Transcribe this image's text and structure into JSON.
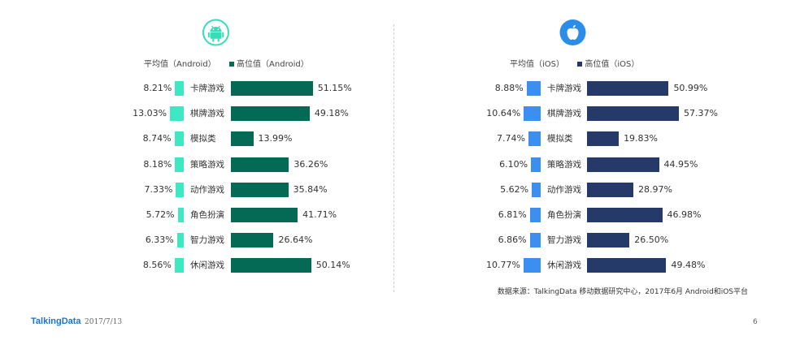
{
  "chart_data": [
    {
      "type": "bar",
      "platform_icon": "android-icon",
      "categories": [
        "卡牌游戏",
        "棋牌游戏",
        "模拟类",
        "策略游戏",
        "动作游戏",
        "角色扮演",
        "智力游戏",
        "休闲游戏"
      ],
      "series": [
        {
          "name": "平均值（Android）",
          "values": [
            8.21,
            13.03,
            8.74,
            8.18,
            7.33,
            5.72,
            6.33,
            8.56
          ],
          "labels": [
            "8.21%",
            "13.03%",
            "8.74%",
            "8.18%",
            "7.33%",
            "5.72%",
            "6.33%",
            "8.56%"
          ],
          "color": "#3de8c3"
        },
        {
          "name": "高位值（Android）",
          "values": [
            51.15,
            49.18,
            13.99,
            36.26,
            35.84,
            41.71,
            26.64,
            50.14
          ],
          "labels": [
            "51.15%",
            "49.18%",
            "13.99%",
            "36.26%",
            "35.84%",
            "41.71%",
            "26.64%",
            "50.14%"
          ],
          "color": "#046a56"
        }
      ]
    },
    {
      "type": "bar",
      "platform_icon": "apple-icon",
      "categories": [
        "卡牌游戏",
        "棋牌游戏",
        "模拟类",
        "策略游戏",
        "动作游戏",
        "角色扮演",
        "智力游戏",
        "休闲游戏"
      ],
      "series": [
        {
          "name": "平均值（iOS）",
          "values": [
            8.88,
            10.64,
            7.74,
            6.1,
            5.62,
            6.81,
            6.86,
            10.77
          ],
          "labels": [
            "8.88%",
            "10.64%",
            "7.74%",
            "6.10%",
            "5.62%",
            "6.81%",
            "6.86%",
            "10.77%"
          ],
          "color": "#3b8ff0"
        },
        {
          "name": "高位值（iOS）",
          "values": [
            50.99,
            57.37,
            19.83,
            44.95,
            28.97,
            46.98,
            26.5,
            49.48
          ],
          "labels": [
            "50.99%",
            "57.37%",
            "19.83%",
            "44.95%",
            "28.97%",
            "46.98%",
            "26.50%",
            "49.48%"
          ],
          "color": "#253a68"
        }
      ]
    }
  ],
  "colors": {
    "android_icon": "#37dcb8",
    "apple_icon": "#2b8de8"
  },
  "footer": {
    "source": "数据来源：TalkingData 移动数据研究中心，2017年6月 Android和iOS平台",
    "brand": "TalkingData",
    "date": "2017/7/13",
    "page": "6"
  }
}
